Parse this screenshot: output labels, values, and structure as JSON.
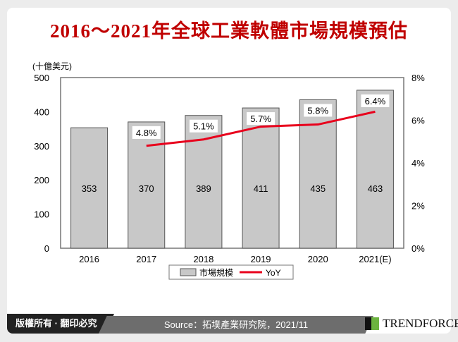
{
  "title": "2016～2021年全球工業軟體市場規模預估",
  "footer": {
    "copyright": "版權所有 · 翻印必究",
    "source": "Source：拓墣產業研究院，2021/11",
    "brand": "TRENDFORCE"
  },
  "chart_data": {
    "type": "bar",
    "title": "2016～2021年全球工業軟體市場規模預估",
    "ylabel": "(十億美元)",
    "categories": [
      "2016",
      "2017",
      "2018",
      "2019",
      "2020",
      "2021(E)"
    ],
    "series": [
      {
        "name": "市場規模",
        "type": "bar",
        "values": [
          353,
          370,
          389,
          411,
          435,
          463
        ],
        "color": "#c8c8c8"
      },
      {
        "name": "YoY",
        "type": "line",
        "axis": "right",
        "values": [
          null,
          4.8,
          5.1,
          5.7,
          5.8,
          6.4
        ],
        "labels": [
          "",
          "4.8%",
          "5.1%",
          "5.7%",
          "5.8%",
          "6.4%"
        ],
        "color": "#e8001c"
      }
    ],
    "ylim": [
      0,
      500
    ],
    "yticks": [
      "0",
      "100",
      "200",
      "300",
      "400",
      "500"
    ],
    "y2lim": [
      0,
      8
    ],
    "y2ticks": [
      "0%",
      "2%",
      "4%",
      "6%",
      "8%"
    ],
    "legend": "bottom",
    "grid": false
  }
}
